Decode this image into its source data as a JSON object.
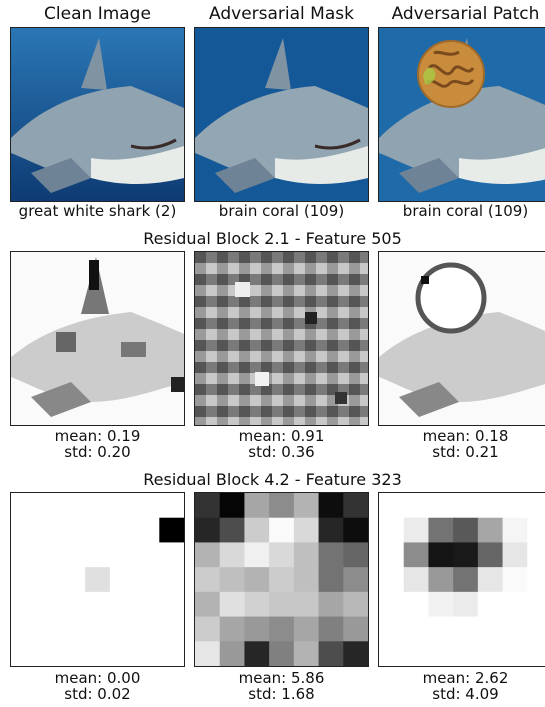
{
  "columns": [
    "Clean Image",
    "Adversarial Mask",
    "Adversarial Patch"
  ],
  "row1": {
    "captions": [
      "great white shark (2)",
      "brain coral (109)",
      "brain coral (109)"
    ]
  },
  "row2": {
    "title": "Residual Block 2.1 - Feature 505",
    "stats": [
      {
        "mean": "mean: 0.19",
        "std": "std: 0.20"
      },
      {
        "mean": "mean: 0.91",
        "std": "std: 0.36"
      },
      {
        "mean": "mean: 0.18",
        "std": "std: 0.21"
      }
    ]
  },
  "row3": {
    "title": "Residual Block 4.2 - Feature 323",
    "stats": [
      {
        "mean": "mean: 0.00",
        "std": "std: 0.02"
      },
      {
        "mean": "mean: 5.86",
        "std": "std: 1.68"
      },
      {
        "mean": "mean: 2.62",
        "std": "std: 4.09"
      }
    ],
    "heatmaps": [
      [
        [
          0,
          0,
          0,
          0,
          0,
          0,
          0
        ],
        [
          0,
          0,
          0,
          0,
          0,
          0,
          1.0
        ],
        [
          0,
          0,
          0,
          0,
          0,
          0,
          0
        ],
        [
          0,
          0,
          0,
          0.12,
          0,
          0,
          0
        ],
        [
          0,
          0,
          0,
          0,
          0,
          0,
          0
        ],
        [
          0,
          0,
          0,
          0,
          0,
          0,
          0
        ],
        [
          0,
          0,
          0,
          0,
          0,
          0,
          0
        ]
      ],
      [
        [
          0.8,
          0.98,
          0.35,
          0.45,
          0.3,
          0.95,
          0.8
        ],
        [
          0.85,
          0.7,
          0.2,
          0.02,
          0.15,
          0.85,
          0.95
        ],
        [
          0.3,
          0.15,
          0.06,
          0.15,
          0.25,
          0.55,
          0.6
        ],
        [
          0.2,
          0.25,
          0.3,
          0.2,
          0.25,
          0.55,
          0.45
        ],
        [
          0.3,
          0.12,
          0.18,
          0.22,
          0.22,
          0.35,
          0.28
        ],
        [
          0.2,
          0.35,
          0.4,
          0.45,
          0.35,
          0.5,
          0.4
        ],
        [
          0.1,
          0.4,
          0.85,
          0.5,
          0.3,
          0.7,
          0.85
        ]
      ],
      [
        [
          0,
          0,
          0,
          0,
          0,
          0,
          0
        ],
        [
          0,
          0.08,
          0.55,
          0.65,
          0.35,
          0.04,
          0
        ],
        [
          0,
          0.45,
          0.92,
          0.9,
          0.6,
          0.1,
          0
        ],
        [
          0,
          0.1,
          0.4,
          0.55,
          0.1,
          0.02,
          0
        ],
        [
          0,
          0,
          0.05,
          0.08,
          0,
          0,
          0
        ],
        [
          0,
          0,
          0,
          0,
          0,
          0,
          0
        ],
        [
          0,
          0,
          0,
          0,
          0,
          0,
          0
        ]
      ]
    ]
  },
  "colors": {
    "water_top": "#1f6aa8",
    "water_bottom": "#0f3f7a",
    "shark_body": "#8fa3b1",
    "shark_belly": "#e8ece9",
    "coral": "#c88c3c"
  }
}
